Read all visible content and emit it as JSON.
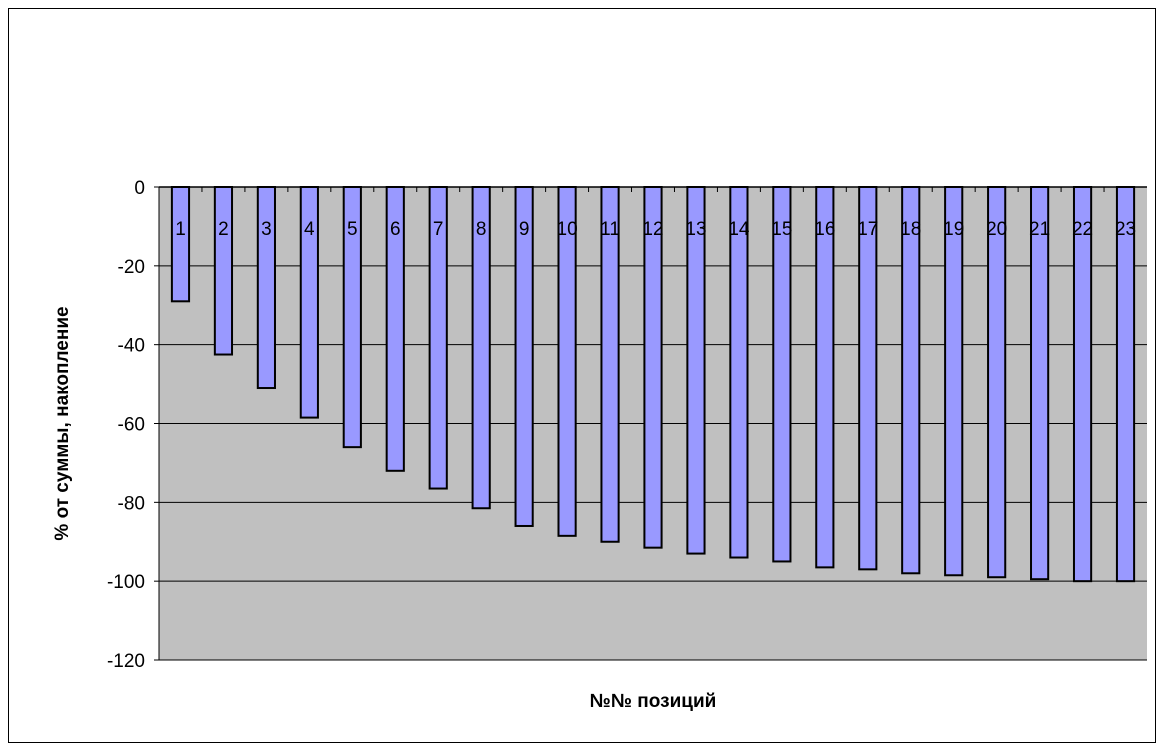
{
  "chart_data": {
    "type": "bar",
    "title": "",
    "xlabel": "№№ позиций",
    "ylabel": "% от суммы, накопление",
    "ylim": [
      -120,
      0
    ],
    "yticks": [
      0,
      -20,
      -40,
      -60,
      -80,
      -100,
      -120
    ],
    "ytick_labels": [
      "0",
      "-20",
      "-40",
      "-60",
      "-80",
      "-100",
      "-120"
    ],
    "grid": true,
    "legend": "none",
    "categories": [
      "1",
      "2",
      "3",
      "4",
      "5",
      "6",
      "7",
      "8",
      "9",
      "10",
      "11",
      "12",
      "13",
      "14",
      "15",
      "16",
      "17",
      "18",
      "19",
      "20",
      "21",
      "22",
      "23"
    ],
    "values": [
      -29,
      -42.5,
      -51,
      -58.5,
      -66,
      -72,
      -76.5,
      -81.5,
      -86,
      -88.5,
      -90,
      -91.5,
      -93,
      -94,
      -95,
      -96.5,
      -97,
      -98,
      -98.5,
      -99,
      -99.5,
      -100,
      -100
    ],
    "colors": {
      "bar_fill": "#9999ff",
      "bar_stroke": "#000000",
      "plot_background": "#c0c0c0",
      "gridline": "#000000"
    }
  }
}
